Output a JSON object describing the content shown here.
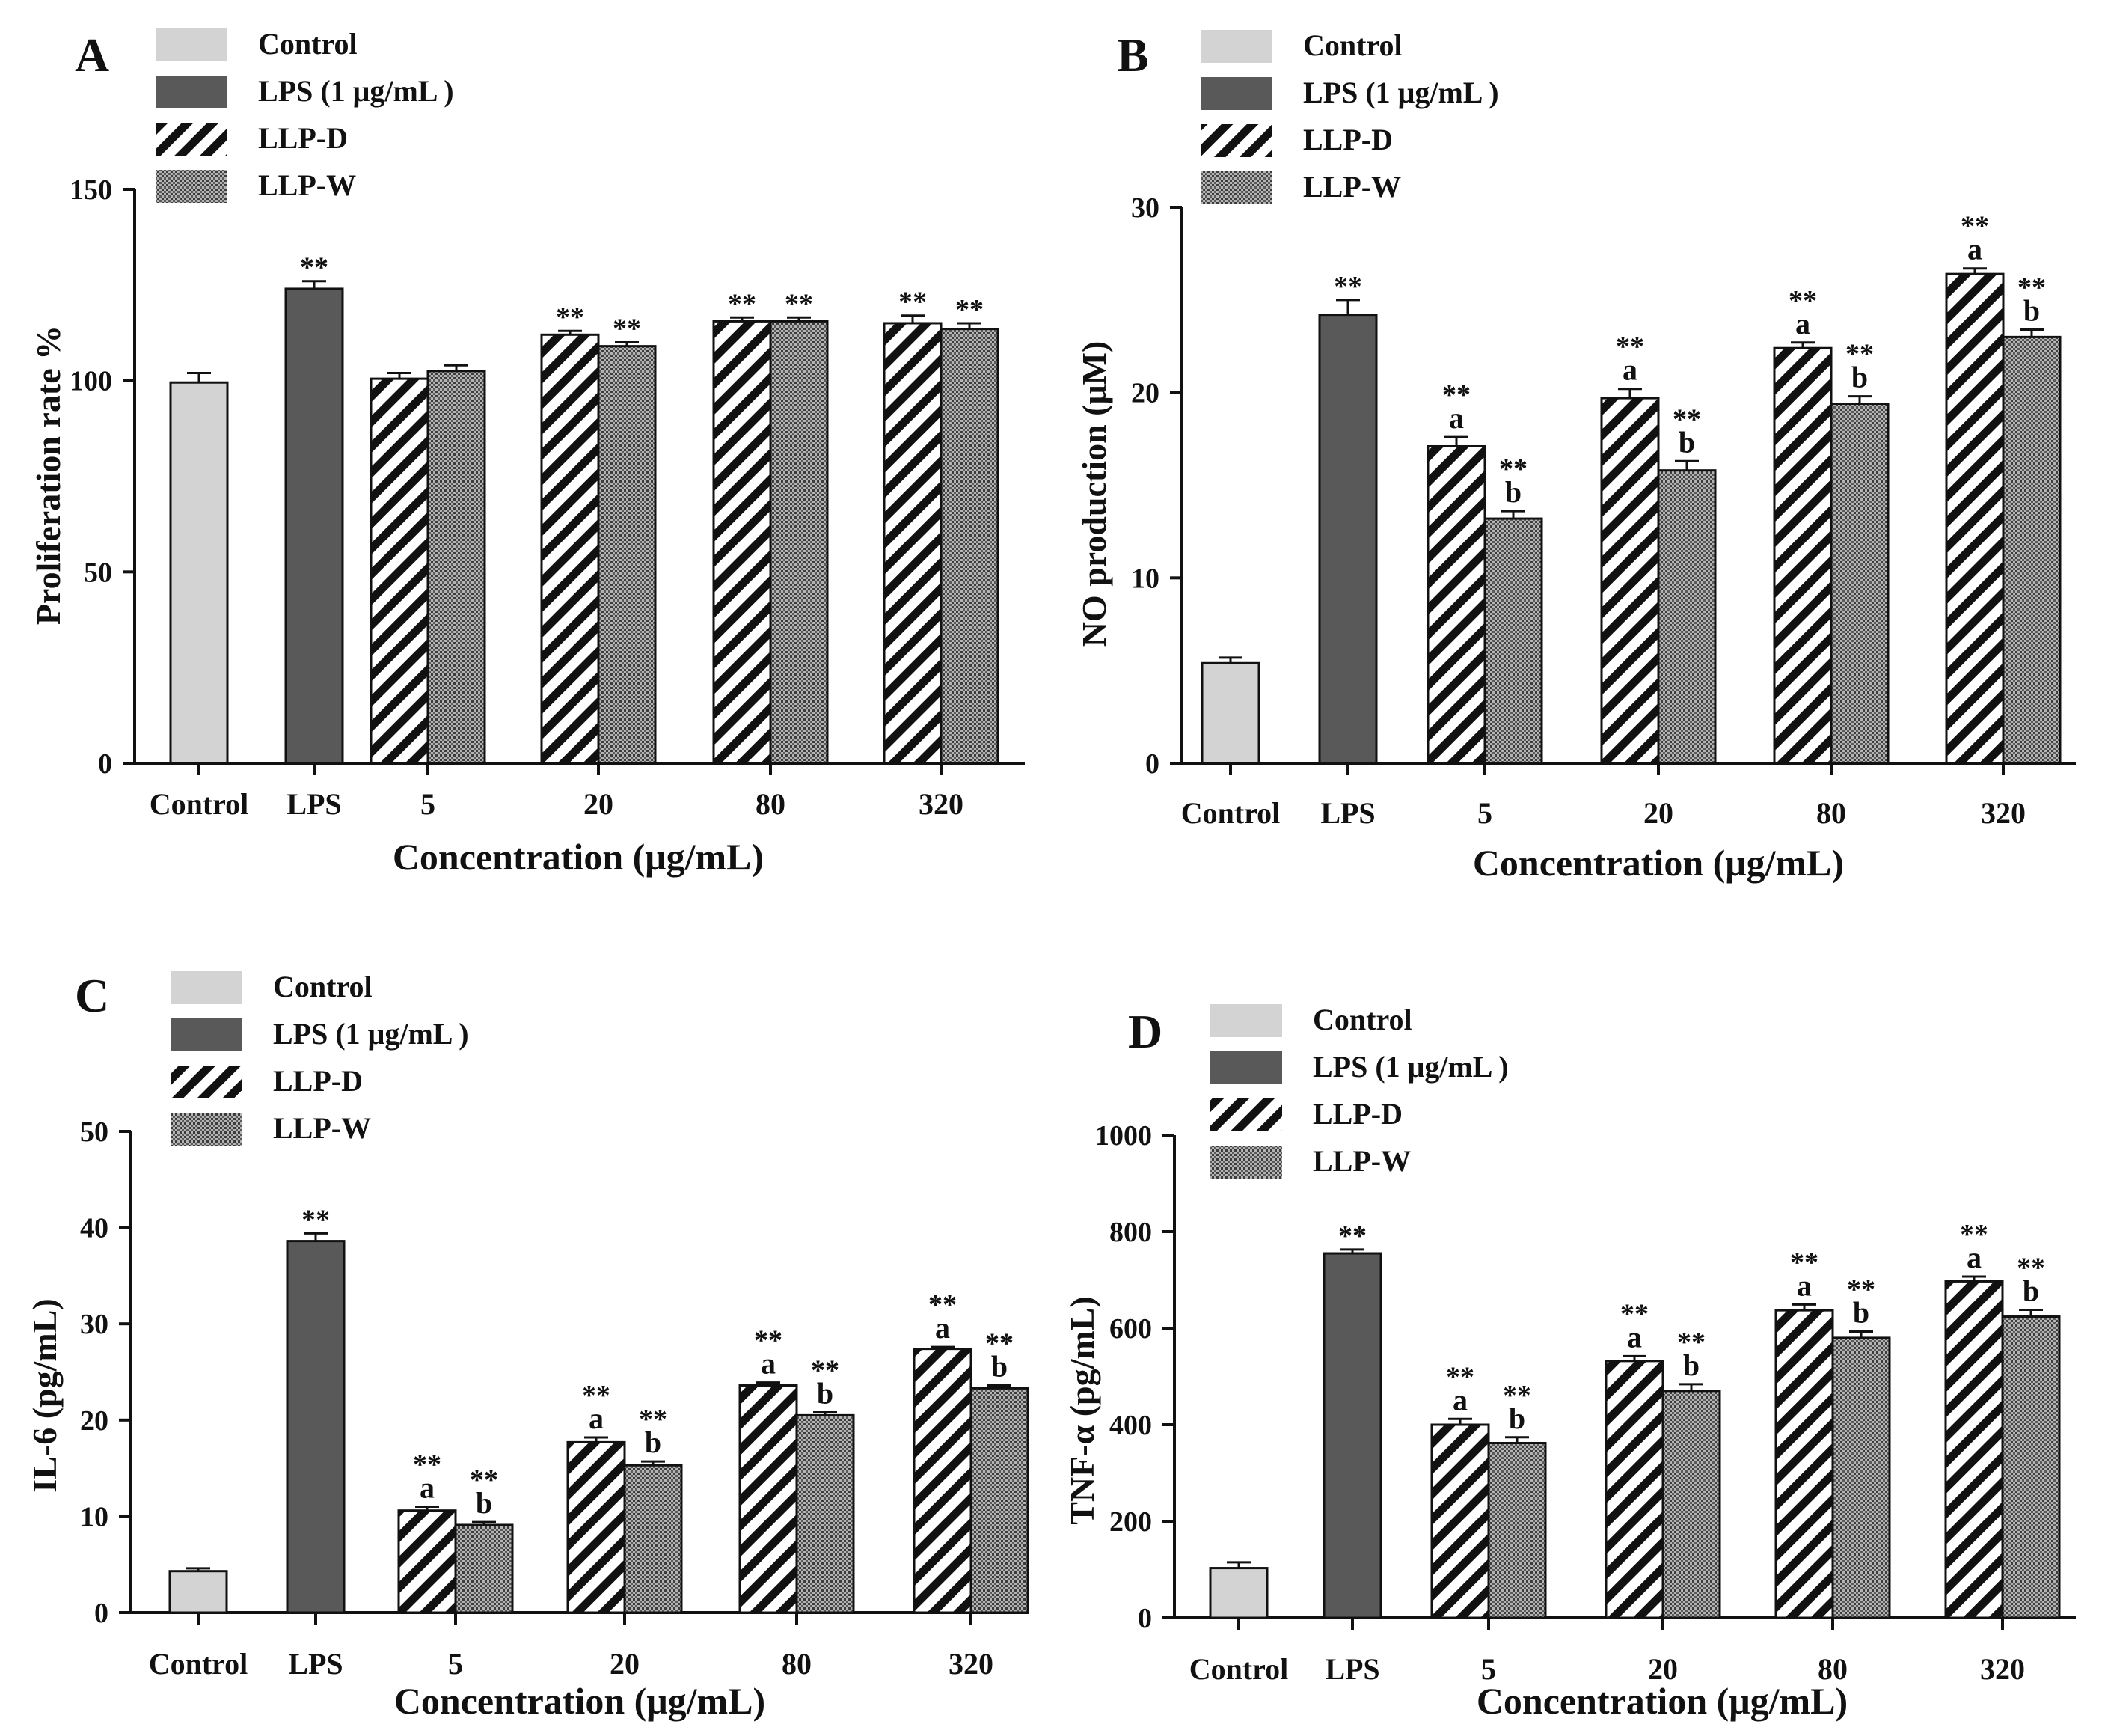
{
  "figure": {
    "legend_labels": [
      "Control",
      "LPS (1 μg/mL )",
      "LLP-D",
      "LLP-W"
    ],
    "colors": {
      "control": "#d3d3d3",
      "lps": "#595959",
      "axis": "#111111",
      "text": "#111111"
    },
    "significance_marker": "**"
  },
  "chart_data": [
    {
      "type": "bar",
      "panel": "A",
      "title": "",
      "xlabel": "Concentration (μg/mL)",
      "ylabel": "Proliferation rate %",
      "ylim": [
        0,
        150
      ],
      "yticks": [
        0,
        50,
        100,
        150
      ],
      "categories": [
        "Control",
        "LPS",
        "5",
        "20",
        "80",
        "320"
      ],
      "series": [
        {
          "name": "Control",
          "values": [
            99.5,
            null,
            null,
            null,
            null,
            null
          ],
          "errors": [
            2.5,
            null,
            null,
            null,
            null,
            null
          ],
          "sig": [
            "",
            "",
            "",
            "",
            "",
            ""
          ],
          "letters": [
            "",
            "",
            "",
            "",
            "",
            ""
          ]
        },
        {
          "name": "LPS (1 μg/mL )",
          "values": [
            null,
            124,
            null,
            null,
            null,
            null
          ],
          "errors": [
            null,
            2,
            null,
            null,
            null,
            null
          ],
          "sig": [
            "",
            "**",
            "",
            "",
            "",
            ""
          ],
          "letters": [
            "",
            "",
            "",
            "",
            "",
            ""
          ]
        },
        {
          "name": "LLP-D",
          "values": [
            null,
            null,
            100.5,
            112,
            115.5,
            115
          ],
          "errors": [
            null,
            null,
            1.5,
            1,
            1,
            2
          ],
          "sig": [
            "",
            "",
            "",
            "**",
            "**",
            "**"
          ],
          "letters": [
            "",
            "",
            "",
            "",
            "",
            ""
          ]
        },
        {
          "name": "LLP-W",
          "values": [
            null,
            null,
            102.5,
            109,
            115.5,
            113.5
          ],
          "errors": [
            null,
            null,
            1.5,
            1,
            1,
            1.5
          ],
          "sig": [
            "",
            "",
            "",
            "**",
            "**",
            "**"
          ],
          "letters": [
            "",
            "",
            "",
            "",
            "",
            ""
          ]
        }
      ]
    },
    {
      "type": "bar",
      "panel": "B",
      "title": "",
      "xlabel": "Concentration (μg/mL)",
      "ylabel": "NO production (μM)",
      "ylim": [
        0,
        30
      ],
      "yticks": [
        0,
        10,
        20,
        30
      ],
      "categories": [
        "Control",
        "LPS",
        "5",
        "20",
        "80",
        "320"
      ],
      "series": [
        {
          "name": "Control",
          "values": [
            5.4,
            null,
            null,
            null,
            null,
            null
          ],
          "errors": [
            0.3,
            null,
            null,
            null,
            null,
            null
          ],
          "sig": [
            "",
            "",
            "",
            "",
            "",
            ""
          ],
          "letters": [
            "",
            "",
            "",
            "",
            "",
            ""
          ]
        },
        {
          "name": "LPS (1 μg/mL )",
          "values": [
            null,
            24.2,
            null,
            null,
            null,
            null
          ],
          "errors": [
            null,
            0.8,
            null,
            null,
            null,
            null
          ],
          "sig": [
            "",
            "**",
            "",
            "",
            "",
            ""
          ],
          "letters": [
            "",
            "",
            "",
            "",
            "",
            ""
          ]
        },
        {
          "name": "LLP-D",
          "values": [
            null,
            null,
            17.1,
            19.7,
            22.4,
            26.4
          ],
          "errors": [
            null,
            null,
            0.5,
            0.5,
            0.3,
            0.3
          ],
          "sig": [
            "",
            "",
            "**",
            "**",
            "**",
            "**"
          ],
          "letters": [
            "",
            "",
            "a",
            "a",
            "a",
            "a"
          ]
        },
        {
          "name": "LLP-W",
          "values": [
            null,
            null,
            13.2,
            15.8,
            19.4,
            23
          ],
          "errors": [
            null,
            null,
            0.4,
            0.5,
            0.4,
            0.4
          ],
          "sig": [
            "",
            "",
            "**",
            "**",
            "**",
            "**"
          ],
          "letters": [
            "",
            "",
            "b",
            "b",
            "b",
            "b"
          ]
        }
      ]
    },
    {
      "type": "bar",
      "panel": "C",
      "title": "",
      "xlabel": "Concentration (μg/mL)",
      "ylabel": "IL-6 (pg/mL)",
      "ylim": [
        0,
        50
      ],
      "yticks": [
        0,
        10,
        20,
        30,
        40,
        50
      ],
      "categories": [
        "Control",
        "LPS",
        "5",
        "20",
        "80",
        "320"
      ],
      "series": [
        {
          "name": "Control",
          "values": [
            4.3,
            null,
            null,
            null,
            null,
            null
          ],
          "errors": [
            0.3,
            null,
            null,
            null,
            null,
            null
          ],
          "sig": [
            "",
            "",
            "",
            "",
            "",
            ""
          ],
          "letters": [
            "",
            "",
            "",
            "",
            "",
            ""
          ]
        },
        {
          "name": "LPS (1 μg/mL )",
          "values": [
            null,
            38.6,
            null,
            null,
            null,
            null
          ],
          "errors": [
            null,
            0.8,
            null,
            null,
            null,
            null
          ],
          "sig": [
            "",
            "**",
            "",
            "",
            "",
            ""
          ],
          "letters": [
            "",
            "",
            "",
            "",
            "",
            ""
          ]
        },
        {
          "name": "LLP-D",
          "values": [
            null,
            null,
            10.6,
            17.7,
            23.6,
            27.4
          ],
          "errors": [
            null,
            null,
            0.4,
            0.5,
            0.3,
            0.2
          ],
          "sig": [
            "",
            "",
            "**",
            "**",
            "**",
            "**"
          ],
          "letters": [
            "",
            "",
            "a",
            "a",
            "a",
            "a"
          ]
        },
        {
          "name": "LLP-W",
          "values": [
            null,
            null,
            9.1,
            15.3,
            20.5,
            23.3
          ],
          "errors": [
            null,
            null,
            0.3,
            0.4,
            0.3,
            0.3
          ],
          "sig": [
            "",
            "",
            "**",
            "**",
            "**",
            "**"
          ],
          "letters": [
            "",
            "",
            "b",
            "b",
            "b",
            "b"
          ]
        }
      ]
    },
    {
      "type": "bar",
      "panel": "D",
      "title": "",
      "xlabel": "Concentration (μg/mL)",
      "ylabel": "TNF-α (pg/mL)",
      "ylim": [
        0,
        1000
      ],
      "yticks": [
        0,
        200,
        400,
        600,
        800,
        1000
      ],
      "categories": [
        "Control",
        "LPS",
        "5",
        "20",
        "80",
        "320"
      ],
      "series": [
        {
          "name": "Control",
          "values": [
            103,
            null,
            null,
            null,
            null,
            null
          ],
          "errors": [
            12,
            null,
            null,
            null,
            null,
            null
          ],
          "sig": [
            "",
            "",
            "",
            "",
            "",
            ""
          ],
          "letters": [
            "",
            "",
            "",
            "",
            "",
            ""
          ]
        },
        {
          "name": "LPS (1 μg/mL )",
          "values": [
            null,
            755,
            null,
            null,
            null,
            null
          ],
          "errors": [
            null,
            8,
            null,
            null,
            null,
            null
          ],
          "sig": [
            "",
            "**",
            "",
            "",
            "",
            ""
          ],
          "letters": [
            "",
            "",
            "",
            "",
            "",
            ""
          ]
        },
        {
          "name": "LLP-D",
          "values": [
            null,
            null,
            400,
            532,
            637,
            697
          ],
          "errors": [
            null,
            null,
            12,
            10,
            12,
            10
          ],
          "sig": [
            "",
            "",
            "**",
            "**",
            "**",
            "**"
          ],
          "letters": [
            "",
            "",
            "a",
            "a",
            "a",
            "a"
          ]
        },
        {
          "name": "LLP-W",
          "values": [
            null,
            null,
            362,
            470,
            580,
            624
          ],
          "errors": [
            null,
            null,
            12,
            14,
            13,
            14
          ],
          "sig": [
            "",
            "",
            "**",
            "**",
            "**",
            "**"
          ],
          "letters": [
            "",
            "",
            "b",
            "b",
            "b",
            "b"
          ]
        }
      ]
    }
  ]
}
